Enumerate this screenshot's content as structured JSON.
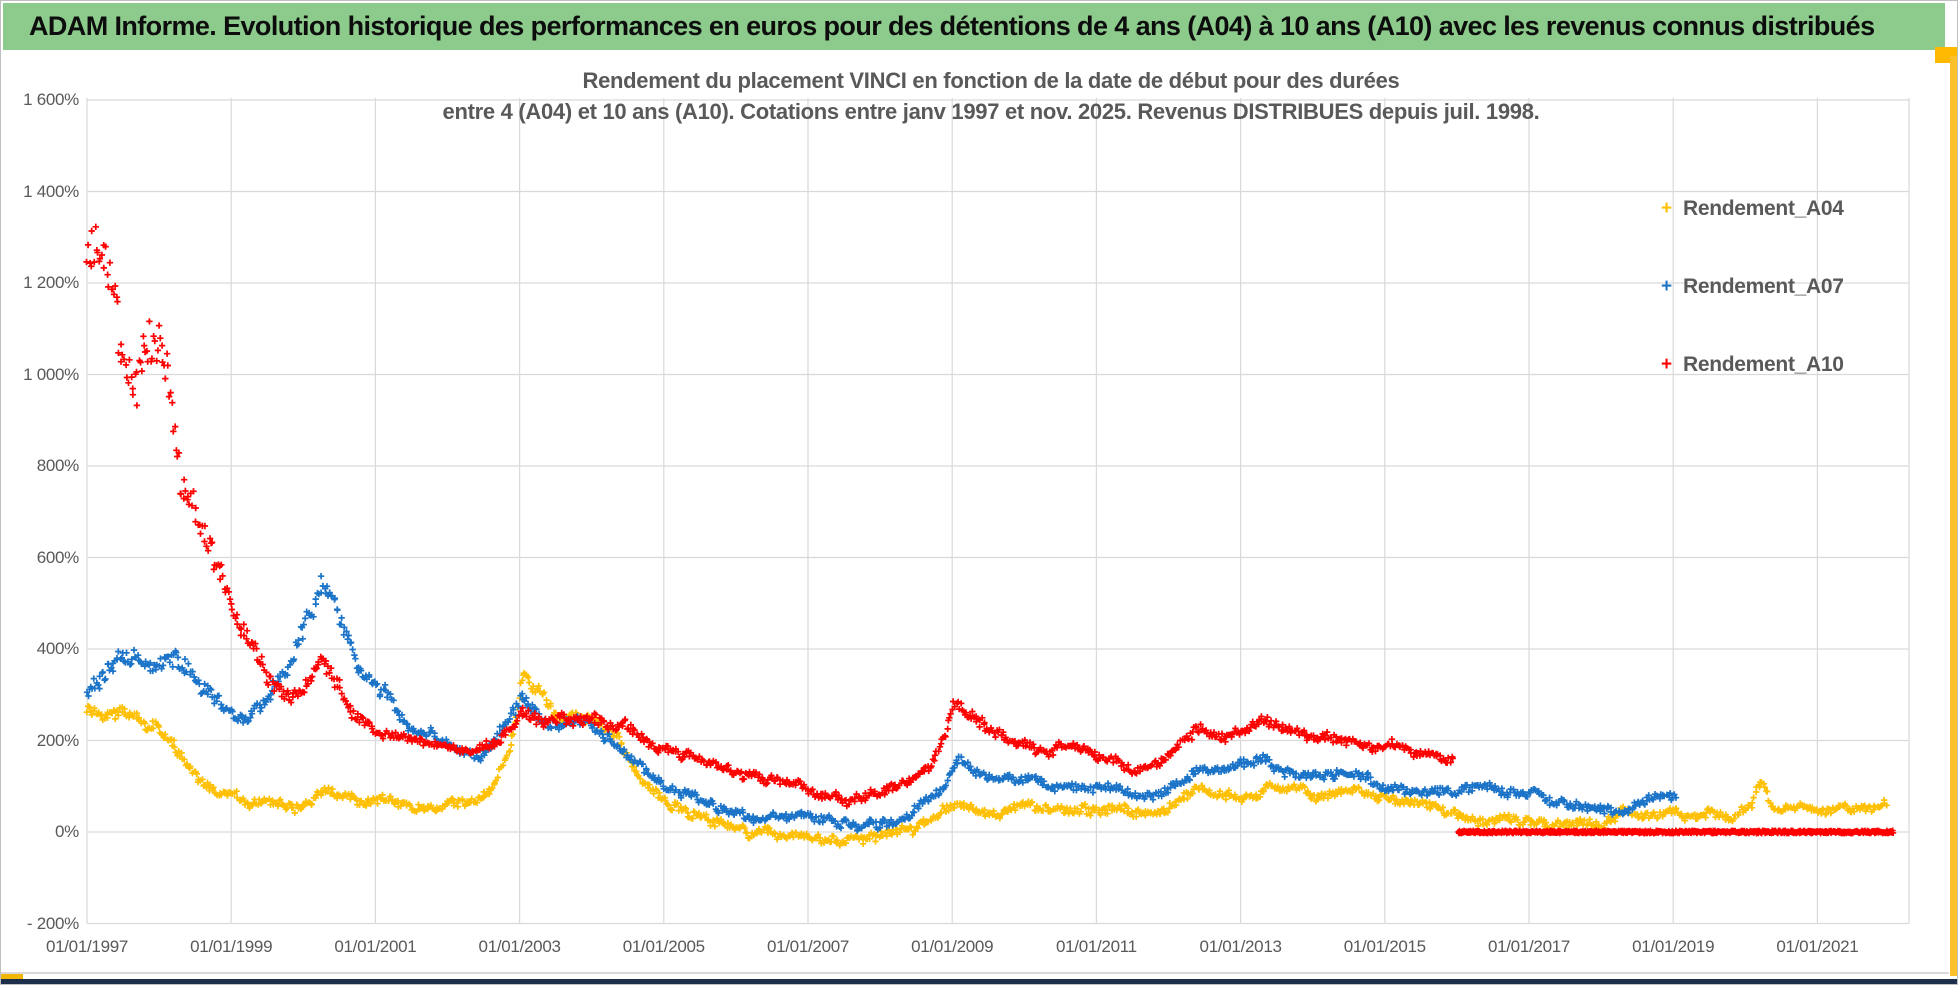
{
  "header": {
    "title": "ADAM Informe. Evolution historique des performances en euros pour des détentions de 4 ans (A04) à 10 ans (A10) avec les revenus connus distribués"
  },
  "chart": {
    "title_line1": "Rendement du placement VINCI en fonction de la date de début pour des durées",
    "title_line2": "entre 4 (A04) et 10 ans (A10). Cotations entre janv 1997 et nov. 2025. Revenus DISTRIBUES depuis juil. 1998."
  },
  "colors": {
    "header_green": "#8ccb8c",
    "series_a04": "#ffc003",
    "series_a07": "#1b74c8",
    "series_a10": "#fe0000",
    "axis_text": "#595959",
    "gridline": "#d9d9d9",
    "frame_gold": "#ffb900",
    "bottom_navy": "#1c2e4a"
  },
  "chart_data": {
    "type": "scatter",
    "title": "Rendement du placement VINCI en fonction de la date de début pour des durées entre 4 (A04) et 10 ans (A10). Cotations entre janv 1997 et nov. 2025. Revenus DISTRIBUES depuis juil. 1998.",
    "marker": "plus",
    "grid": true,
    "legend_position": "right",
    "x_axis": {
      "range_years": [
        1997.0,
        2022.3
      ],
      "ticks": [
        {
          "label": "01/01/1997",
          "year": 1997
        },
        {
          "label": "01/01/1999",
          "year": 1999
        },
        {
          "label": "01/01/2001",
          "year": 2001
        },
        {
          "label": "01/01/2003",
          "year": 2003
        },
        {
          "label": "01/01/2005",
          "year": 2005
        },
        {
          "label": "01/01/2007",
          "year": 2007
        },
        {
          "label": "01/01/2009",
          "year": 2009
        },
        {
          "label": "01/01/2011",
          "year": 2011
        },
        {
          "label": "01/01/2013",
          "year": 2013
        },
        {
          "label": "01/01/2015",
          "year": 2015
        },
        {
          "label": "01/01/2017",
          "year": 2017
        },
        {
          "label": "01/01/2019",
          "year": 2019
        },
        {
          "label": "01/01/2021",
          "year": 2021
        }
      ]
    },
    "y_axis": {
      "range": [
        -200,
        1600
      ],
      "format": "percent",
      "ticks": [
        {
          "label": "1 600%",
          "value": 1600
        },
        {
          "label": "1 400%",
          "value": 1400
        },
        {
          "label": "1 200%",
          "value": 1200
        },
        {
          "label": "1 000%",
          "value": 1000
        },
        {
          "label": "800%",
          "value": 800
        },
        {
          "label": "600%",
          "value": 600
        },
        {
          "label": "400%",
          "value": 400
        },
        {
          "label": "200%",
          "value": 200
        },
        {
          "label": "0%",
          "value": 0
        },
        {
          "label": "- 200%",
          "value": -200
        }
      ]
    },
    "series": [
      {
        "name": "Rendement_A04",
        "color": "#ffc003",
        "units": "percent",
        "anchors": [
          [
            1997.0,
            265
          ],
          [
            1997.3,
            248
          ],
          [
            1997.55,
            262
          ],
          [
            1997.8,
            240
          ],
          [
            1998.0,
            225
          ],
          [
            1998.2,
            190
          ],
          [
            1998.45,
            140
          ],
          [
            1998.7,
            105
          ],
          [
            1999.0,
            80
          ],
          [
            1999.25,
            65
          ],
          [
            1999.5,
            78
          ],
          [
            1999.75,
            62
          ],
          [
            2000.0,
            55
          ],
          [
            2000.3,
            88
          ],
          [
            2000.55,
            75
          ],
          [
            2000.85,
            62
          ],
          [
            2001.15,
            70
          ],
          [
            2001.45,
            60
          ],
          [
            2001.75,
            50
          ],
          [
            2002.05,
            58
          ],
          [
            2002.35,
            70
          ],
          [
            2002.65,
            110
          ],
          [
            2002.88,
            185
          ],
          [
            2003.05,
            340
          ],
          [
            2003.2,
            320
          ],
          [
            2003.4,
            278
          ],
          [
            2003.6,
            252
          ],
          [
            2003.85,
            238
          ],
          [
            2004.1,
            242
          ],
          [
            2004.35,
            215
          ],
          [
            2004.6,
            140
          ],
          [
            2004.85,
            90
          ],
          [
            2005.1,
            58
          ],
          [
            2005.35,
            38
          ],
          [
            2005.65,
            22
          ],
          [
            2006.0,
            10
          ],
          [
            2006.5,
            -4
          ],
          [
            2007.0,
            -8
          ],
          [
            2007.5,
            -22
          ],
          [
            2007.8,
            -18
          ],
          [
            2008.1,
            -4
          ],
          [
            2008.5,
            12
          ],
          [
            2008.8,
            32
          ],
          [
            2009.0,
            62
          ],
          [
            2009.35,
            45
          ],
          [
            2009.7,
            40
          ],
          [
            2010.0,
            55
          ],
          [
            2010.4,
            50
          ],
          [
            2010.8,
            44
          ],
          [
            2011.2,
            55
          ],
          [
            2011.6,
            44
          ],
          [
            2012.0,
            56
          ],
          [
            2012.4,
            92
          ],
          [
            2012.7,
            82
          ],
          [
            2013.0,
            80
          ],
          [
            2013.3,
            102
          ],
          [
            2013.6,
            92
          ],
          [
            2014.0,
            80
          ],
          [
            2014.4,
            90
          ],
          [
            2014.8,
            84
          ],
          [
            2015.2,
            76
          ],
          [
            2015.6,
            58
          ],
          [
            2016.0,
            30
          ],
          [
            2016.4,
            22
          ],
          [
            2016.8,
            18
          ],
          [
            2017.2,
            15
          ],
          [
            2017.6,
            12
          ],
          [
            2018.0,
            16
          ],
          [
            2018.3,
            40
          ],
          [
            2018.7,
            30
          ],
          [
            2019.0,
            42
          ],
          [
            2019.3,
            45
          ],
          [
            2019.6,
            34
          ],
          [
            2019.9,
            38
          ],
          [
            2020.1,
            60
          ],
          [
            2020.22,
            108
          ],
          [
            2020.35,
            70
          ],
          [
            2020.5,
            50
          ],
          [
            2020.8,
            68
          ],
          [
            2021.05,
            46
          ],
          [
            2021.35,
            50
          ],
          [
            2021.65,
            52
          ],
          [
            2021.97,
            55
          ]
        ]
      },
      {
        "name": "Rendement_A07",
        "color": "#1b74c8",
        "units": "percent",
        "anchors": [
          [
            1997.0,
            300
          ],
          [
            1997.2,
            340
          ],
          [
            1997.45,
            380
          ],
          [
            1997.7,
            370
          ],
          [
            1997.95,
            365
          ],
          [
            1998.2,
            385
          ],
          [
            1998.4,
            360
          ],
          [
            1998.6,
            310
          ],
          [
            1998.8,
            275
          ],
          [
            1999.0,
            258
          ],
          [
            1999.2,
            242
          ],
          [
            1999.4,
            282
          ],
          [
            1999.6,
            320
          ],
          [
            1999.8,
            368
          ],
          [
            2000.0,
            440
          ],
          [
            2000.15,
            498
          ],
          [
            2000.3,
            528
          ],
          [
            2000.45,
            468
          ],
          [
            2000.6,
            418
          ],
          [
            2000.75,
            352
          ],
          [
            2000.9,
            318
          ],
          [
            2001.1,
            298
          ],
          [
            2001.3,
            262
          ],
          [
            2001.5,
            232
          ],
          [
            2001.7,
            212
          ],
          [
            2001.95,
            202
          ],
          [
            2002.2,
            178
          ],
          [
            2002.45,
            168
          ],
          [
            2002.7,
            205
          ],
          [
            2002.9,
            255
          ],
          [
            2003.05,
            288
          ],
          [
            2003.25,
            252
          ],
          [
            2003.5,
            225
          ],
          [
            2003.75,
            232
          ],
          [
            2004.0,
            225
          ],
          [
            2004.25,
            198
          ],
          [
            2004.5,
            172
          ],
          [
            2004.75,
            138
          ],
          [
            2005.0,
            105
          ],
          [
            2005.25,
            82
          ],
          [
            2005.5,
            68
          ],
          [
            2005.75,
            50
          ],
          [
            2006.0,
            42
          ],
          [
            2006.3,
            35
          ],
          [
            2006.6,
            30
          ],
          [
            2006.9,
            28
          ],
          [
            2007.2,
            22
          ],
          [
            2007.5,
            15
          ],
          [
            2007.8,
            18
          ],
          [
            2008.1,
            20
          ],
          [
            2008.4,
            38
          ],
          [
            2008.7,
            75
          ],
          [
            2008.9,
            105
          ],
          [
            2009.1,
            160
          ],
          [
            2009.3,
            130
          ],
          [
            2009.6,
            115
          ],
          [
            2010.0,
            122
          ],
          [
            2010.3,
            108
          ],
          [
            2010.6,
            98
          ],
          [
            2011.0,
            104
          ],
          [
            2011.4,
            88
          ],
          [
            2011.8,
            78
          ],
          [
            2012.1,
            108
          ],
          [
            2012.4,
            142
          ],
          [
            2012.7,
            132
          ],
          [
            2013.0,
            148
          ],
          [
            2013.3,
            162
          ],
          [
            2013.6,
            138
          ],
          [
            2014.0,
            128
          ],
          [
            2014.4,
            138
          ],
          [
            2014.8,
            118
          ],
          [
            2015.2,
            95
          ],
          [
            2015.6,
            88
          ],
          [
            2016.0,
            94
          ],
          [
            2016.4,
            99
          ],
          [
            2016.8,
            84
          ],
          [
            2017.2,
            74
          ],
          [
            2017.6,
            58
          ],
          [
            2018.0,
            42
          ],
          [
            2018.3,
            50
          ],
          [
            2018.6,
            72
          ],
          [
            2018.9,
            84
          ],
          [
            2019.05,
            82
          ]
        ]
      },
      {
        "name": "Rendement_A10",
        "color": "#fe0000",
        "units": "percent",
        "anchors": [
          [
            1997.0,
            1200
          ],
          [
            1997.1,
            1260
          ],
          [
            1997.2,
            1235
          ],
          [
            1997.35,
            1150
          ],
          [
            1997.5,
            1060
          ],
          [
            1997.65,
            1035
          ],
          [
            1997.8,
            1105
          ],
          [
            1998.0,
            1060
          ],
          [
            1998.15,
            955
          ],
          [
            1998.3,
            790
          ],
          [
            1998.5,
            700
          ],
          [
            1998.65,
            625
          ],
          [
            1998.8,
            560
          ],
          [
            1999.0,
            505
          ],
          [
            1999.2,
            430
          ],
          [
            1999.35,
            400
          ],
          [
            1999.5,
            345
          ],
          [
            1999.7,
            310
          ],
          [
            1999.9,
            295
          ],
          [
            2000.1,
            320
          ],
          [
            2000.25,
            385
          ],
          [
            2000.4,
            330
          ],
          [
            2000.6,
            285
          ],
          [
            2000.8,
            250
          ],
          [
            2001.0,
            232
          ],
          [
            2001.3,
            218
          ],
          [
            2001.6,
            196
          ],
          [
            2001.9,
            186
          ],
          [
            2002.2,
            176
          ],
          [
            2002.5,
            186
          ],
          [
            2002.8,
            212
          ],
          [
            2003.05,
            252
          ],
          [
            2003.3,
            238
          ],
          [
            2003.6,
            248
          ],
          [
            2003.9,
            238
          ],
          [
            2004.2,
            248
          ],
          [
            2004.5,
            228
          ],
          [
            2004.8,
            198
          ],
          [
            2005.1,
            178
          ],
          [
            2005.4,
            164
          ],
          [
            2005.7,
            148
          ],
          [
            2006.0,
            128
          ],
          [
            2006.4,
            118
          ],
          [
            2006.8,
            104
          ],
          [
            2007.2,
            82
          ],
          [
            2007.5,
            70
          ],
          [
            2007.8,
            84
          ],
          [
            2008.1,
            95
          ],
          [
            2008.4,
            118
          ],
          [
            2008.7,
            148
          ],
          [
            2008.9,
            215
          ],
          [
            2009.05,
            295
          ],
          [
            2009.2,
            270
          ],
          [
            2009.4,
            245
          ],
          [
            2009.7,
            215
          ],
          [
            2010.0,
            190
          ],
          [
            2010.3,
            175
          ],
          [
            2010.6,
            190
          ],
          [
            2010.9,
            175
          ],
          [
            2011.2,
            160
          ],
          [
            2011.5,
            146
          ],
          [
            2011.8,
            140
          ],
          [
            2012.1,
            180
          ],
          [
            2012.4,
            225
          ],
          [
            2012.7,
            208
          ],
          [
            2013.0,
            225
          ],
          [
            2013.3,
            245
          ],
          [
            2013.6,
            225
          ],
          [
            2013.9,
            205
          ],
          [
            2014.2,
            215
          ],
          [
            2014.5,
            205
          ],
          [
            2014.8,
            190
          ],
          [
            2015.1,
            196
          ],
          [
            2015.4,
            180
          ],
          [
            2015.7,
            165
          ],
          [
            2015.95,
            152
          ]
        ],
        "flat_segment": {
          "from_year": 2016.02,
          "to_year": 2022.06,
          "value": 0
        }
      }
    ]
  }
}
